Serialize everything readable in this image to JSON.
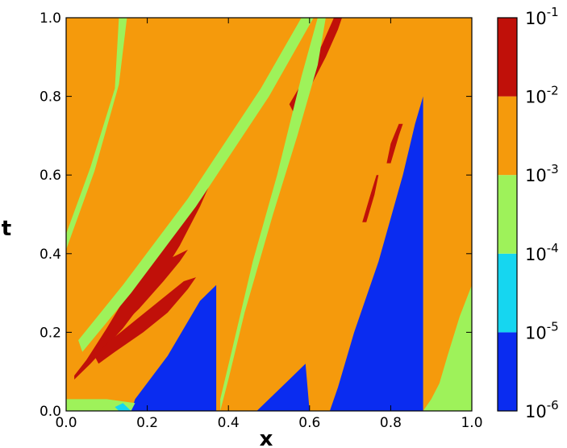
{
  "chart_data": {
    "type": "contour",
    "title": "",
    "xlabel": "x",
    "ylabel": "t",
    "xlim": [
      0.0,
      1.0
    ],
    "ylim": [
      0.0,
      1.0
    ],
    "x_ticks": [
      "0.0",
      "0.2",
      "0.4",
      "0.6",
      "0.8",
      "1.0"
    ],
    "y_ticks": [
      "0.0",
      "0.2",
      "0.4",
      "0.6",
      "0.8",
      "1.0"
    ],
    "colorbar": {
      "scale": "log",
      "levels": [
        {
          "label_base": "10",
          "label_exp": "-6",
          "color": "#0a2cf0"
        },
        {
          "label_base": "10",
          "label_exp": "-5",
          "color": "#16d6f0"
        },
        {
          "label_base": "10",
          "label_exp": "-4",
          "color": "#9ef25a"
        },
        {
          "label_base": "10",
          "label_exp": "-3",
          "color": "#f59a0c"
        },
        {
          "label_base": "10",
          "label_exp": "-2",
          "color": "#c01009"
        },
        {
          "label_base": "10",
          "label_exp": "-1",
          "color": null
        }
      ],
      "bands": [
        {
          "from": "1e-6",
          "to": "1e-5",
          "color": "#0a2cf0"
        },
        {
          "from": "1e-5",
          "to": "1e-4",
          "color": "#16d6f0"
        },
        {
          "from": "1e-4",
          "to": "1e-3",
          "color": "#9ef25a"
        },
        {
          "from": "1e-3",
          "to": "1e-2",
          "color": "#f59a0c"
        },
        {
          "from": "1e-2",
          "to": "1e-1",
          "color": "#c01009"
        }
      ]
    },
    "regions": [
      {
        "name": "blue-wedge-1",
        "band": "1e-6..1e-5",
        "vertices": [
          [
            0.16,
            0.0
          ],
          [
            0.37,
            0.0
          ],
          [
            0.37,
            0.32
          ],
          [
            0.33,
            0.28
          ],
          [
            0.25,
            0.14
          ],
          [
            0.17,
            0.03
          ]
        ]
      },
      {
        "name": "blue-wedge-2",
        "band": "1e-6..1e-5",
        "vertices": [
          [
            0.47,
            0.0
          ],
          [
            0.6,
            0.0
          ],
          [
            0.59,
            0.12
          ],
          [
            0.55,
            0.08
          ],
          [
            0.5,
            0.03
          ]
        ]
      },
      {
        "name": "blue-wedge-3",
        "band": "1e-6..1e-5",
        "vertices": [
          [
            0.65,
            0.0
          ],
          [
            0.88,
            0.0
          ],
          [
            0.88,
            0.8
          ],
          [
            0.86,
            0.73
          ],
          [
            0.83,
            0.6
          ],
          [
            0.77,
            0.38
          ],
          [
            0.71,
            0.2
          ],
          [
            0.67,
            0.06
          ]
        ]
      },
      {
        "name": "red-streak-1",
        "band": "1e-2..1e-1",
        "vertices": [
          [
            0.02,
            0.08
          ],
          [
            0.06,
            0.12
          ],
          [
            0.14,
            0.21
          ],
          [
            0.22,
            0.32
          ],
          [
            0.28,
            0.42
          ],
          [
            0.33,
            0.52
          ],
          [
            0.36,
            0.59
          ],
          [
            0.37,
            0.64
          ],
          [
            0.345,
            0.6
          ],
          [
            0.3,
            0.53
          ],
          [
            0.24,
            0.44
          ],
          [
            0.17,
            0.33
          ],
          [
            0.1,
            0.21
          ],
          [
            0.05,
            0.13
          ],
          [
            0.02,
            0.09
          ]
        ]
      },
      {
        "name": "red-streak-2",
        "band": "1e-2..1e-1",
        "vertices": [
          [
            0.08,
            0.12
          ],
          [
            0.12,
            0.15
          ],
          [
            0.19,
            0.2
          ],
          [
            0.25,
            0.25
          ],
          [
            0.3,
            0.31
          ],
          [
            0.32,
            0.34
          ],
          [
            0.29,
            0.33
          ],
          [
            0.23,
            0.28
          ],
          [
            0.17,
            0.23
          ],
          [
            0.11,
            0.18
          ],
          [
            0.07,
            0.14
          ]
        ]
      },
      {
        "name": "red-streak-3",
        "band": "1e-2..1e-1",
        "vertices": [
          [
            0.12,
            0.2
          ],
          [
            0.18,
            0.26
          ],
          [
            0.24,
            0.33
          ],
          [
            0.28,
            0.38
          ],
          [
            0.3,
            0.41
          ],
          [
            0.26,
            0.39
          ],
          [
            0.2,
            0.32
          ],
          [
            0.15,
            0.26
          ]
        ]
      },
      {
        "name": "red-streak-4",
        "band": "1e-2..1e-1",
        "vertices": [
          [
            0.56,
            0.76
          ],
          [
            0.6,
            0.82
          ],
          [
            0.64,
            0.9
          ],
          [
            0.67,
            0.97
          ],
          [
            0.68,
            1.0
          ],
          [
            0.66,
            1.0
          ],
          [
            0.63,
            0.93
          ],
          [
            0.59,
            0.85
          ],
          [
            0.55,
            0.78
          ]
        ]
      },
      {
        "name": "red-streak-5",
        "band": "1e-2..1e-1",
        "vertices": [
          [
            0.74,
            0.48
          ],
          [
            0.76,
            0.55
          ],
          [
            0.77,
            0.6
          ],
          [
            0.765,
            0.6
          ],
          [
            0.75,
            0.55
          ],
          [
            0.73,
            0.48
          ]
        ]
      },
      {
        "name": "red-streak-6",
        "band": "1e-2..1e-1",
        "vertices": [
          [
            0.8,
            0.63
          ],
          [
            0.82,
            0.7
          ],
          [
            0.83,
            0.73
          ],
          [
            0.82,
            0.73
          ],
          [
            0.8,
            0.68
          ],
          [
            0.79,
            0.63
          ]
        ]
      },
      {
        "name": "green-diag-1",
        "band": "1e-4..1e-3",
        "vertices": [
          [
            0.0,
            0.45
          ],
          [
            0.06,
            0.62
          ],
          [
            0.12,
            0.82
          ],
          [
            0.13,
            1.0
          ],
          [
            0.15,
            1.0
          ],
          [
            0.13,
            0.83
          ],
          [
            0.07,
            0.61
          ],
          [
            0.0,
            0.41
          ]
        ]
      },
      {
        "name": "green-diag-2",
        "band": "1e-4..1e-3",
        "vertices": [
          [
            0.03,
            0.18
          ],
          [
            0.14,
            0.32
          ],
          [
            0.3,
            0.54
          ],
          [
            0.48,
            0.82
          ],
          [
            0.58,
            1.0
          ],
          [
            0.61,
            1.0
          ],
          [
            0.5,
            0.8
          ],
          [
            0.32,
            0.52
          ],
          [
            0.16,
            0.3
          ],
          [
            0.04,
            0.15
          ]
        ]
      },
      {
        "name": "green-diag-3",
        "band": "1e-4..1e-3",
        "vertices": [
          [
            0.38,
            0.0
          ],
          [
            0.4,
            0.08
          ],
          [
            0.44,
            0.25
          ],
          [
            0.51,
            0.5
          ],
          [
            0.57,
            0.7
          ],
          [
            0.62,
            0.88
          ],
          [
            0.64,
            1.0
          ],
          [
            0.62,
            1.0
          ],
          [
            0.58,
            0.85
          ],
          [
            0.52,
            0.6
          ],
          [
            0.46,
            0.38
          ],
          [
            0.41,
            0.16
          ],
          [
            0.38,
            0.03
          ]
        ]
      },
      {
        "name": "green-right",
        "band": "1e-4..1e-3",
        "vertices": [
          [
            0.88,
            0.0
          ],
          [
            1.0,
            0.0
          ],
          [
            1.0,
            0.32
          ],
          [
            0.97,
            0.24
          ],
          [
            0.94,
            0.14
          ],
          [
            0.92,
            0.07
          ],
          [
            0.9,
            0.03
          ]
        ]
      },
      {
        "name": "green-bottom",
        "band": "1e-4..1e-3",
        "vertices": [
          [
            0.0,
            0.0
          ],
          [
            0.16,
            0.0
          ],
          [
            0.17,
            0.02
          ],
          [
            0.1,
            0.03
          ],
          [
            0.0,
            0.03
          ]
        ]
      },
      {
        "name": "cyan-left",
        "band": "1e-5..1e-4",
        "vertices": [
          [
            0.13,
            0.0
          ],
          [
            0.16,
            0.0
          ],
          [
            0.14,
            0.02
          ],
          [
            0.12,
            0.01
          ]
        ]
      }
    ]
  }
}
